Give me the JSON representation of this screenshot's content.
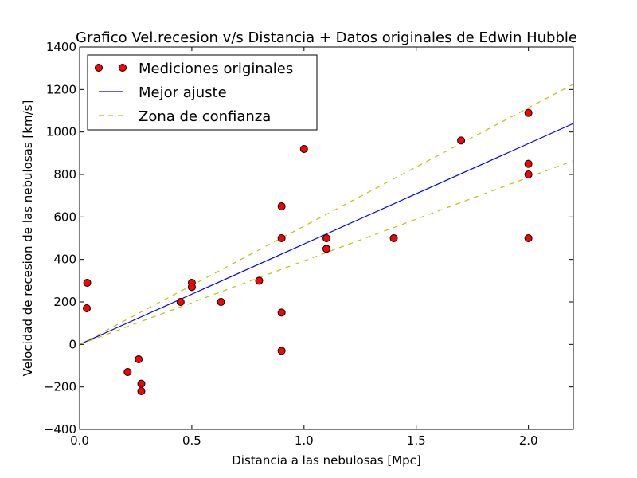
{
  "chart_data": {
    "type": "scatter",
    "title": "Grafico Vel.recesion v/s Distancia + Datos originales de Edwin Hubble",
    "xlabel": "Distancia a las nebulosas [Mpc]",
    "ylabel": "Velocidad de recesion de las nebulosas [km/s]",
    "xlim": [
      0.0,
      2.2
    ],
    "ylim": [
      -400,
      1400
    ],
    "xticks": [
      {
        "value": 0.0,
        "label": "0.0"
      },
      {
        "value": 0.5,
        "label": "0.5"
      },
      {
        "value": 1.0,
        "label": "1.0"
      },
      {
        "value": 1.5,
        "label": "1.5"
      },
      {
        "value": 2.0,
        "label": "2.0"
      }
    ],
    "yticks": [
      {
        "value": -400,
        "label": "−400"
      },
      {
        "value": -200,
        "label": "−200"
      },
      {
        "value": 0,
        "label": "0"
      },
      {
        "value": 200,
        "label": "200"
      },
      {
        "value": 400,
        "label": "400"
      },
      {
        "value": 600,
        "label": "600"
      },
      {
        "value": 800,
        "label": "800"
      },
      {
        "value": 1000,
        "label": "1000"
      },
      {
        "value": 1200,
        "label": "1200"
      },
      {
        "value": 1400,
        "label": "1400"
      }
    ],
    "grid": false,
    "legend_position": "top-left",
    "series": [
      {
        "name": "Mediciones originales",
        "kind": "points",
        "color": "#ff0000",
        "points": [
          {
            "x": 0.032,
            "y": 170
          },
          {
            "x": 0.034,
            "y": 290
          },
          {
            "x": 0.214,
            "y": -130
          },
          {
            "x": 0.263,
            "y": -70
          },
          {
            "x": 0.275,
            "y": -185
          },
          {
            "x": 0.275,
            "y": -220
          },
          {
            "x": 0.45,
            "y": 200
          },
          {
            "x": 0.5,
            "y": 290
          },
          {
            "x": 0.5,
            "y": 270
          },
          {
            "x": 0.63,
            "y": 200
          },
          {
            "x": 0.8,
            "y": 300
          },
          {
            "x": 0.9,
            "y": -30
          },
          {
            "x": 0.9,
            "y": 650
          },
          {
            "x": 0.9,
            "y": 150
          },
          {
            "x": 0.9,
            "y": 500
          },
          {
            "x": 1.0,
            "y": 920
          },
          {
            "x": 1.1,
            "y": 450
          },
          {
            "x": 1.1,
            "y": 500
          },
          {
            "x": 1.4,
            "y": 500
          },
          {
            "x": 1.7,
            "y": 960
          },
          {
            "x": 2.0,
            "y": 500
          },
          {
            "x": 2.0,
            "y": 850
          },
          {
            "x": 2.0,
            "y": 800
          },
          {
            "x": 2.0,
            "y": 1090
          }
        ]
      },
      {
        "name": "Mejor ajuste",
        "kind": "line",
        "color": "#0000ff",
        "dashed": false,
        "points": [
          {
            "x": 0.0,
            "y": 0
          },
          {
            "x": 2.2,
            "y": 1040
          }
        ]
      },
      {
        "name": "Zona de confianza",
        "kind": "line",
        "color": "#bfbf00",
        "dashed": true,
        "points": [
          {
            "x": 0.0,
            "y": 0
          },
          {
            "x": 2.2,
            "y": 1225
          }
        ]
      },
      {
        "name": "",
        "kind": "line",
        "color": "#bfbf00",
        "dashed": true,
        "points": [
          {
            "x": 0.0,
            "y": 0
          },
          {
            "x": 2.2,
            "y": 865
          }
        ]
      }
    ]
  }
}
